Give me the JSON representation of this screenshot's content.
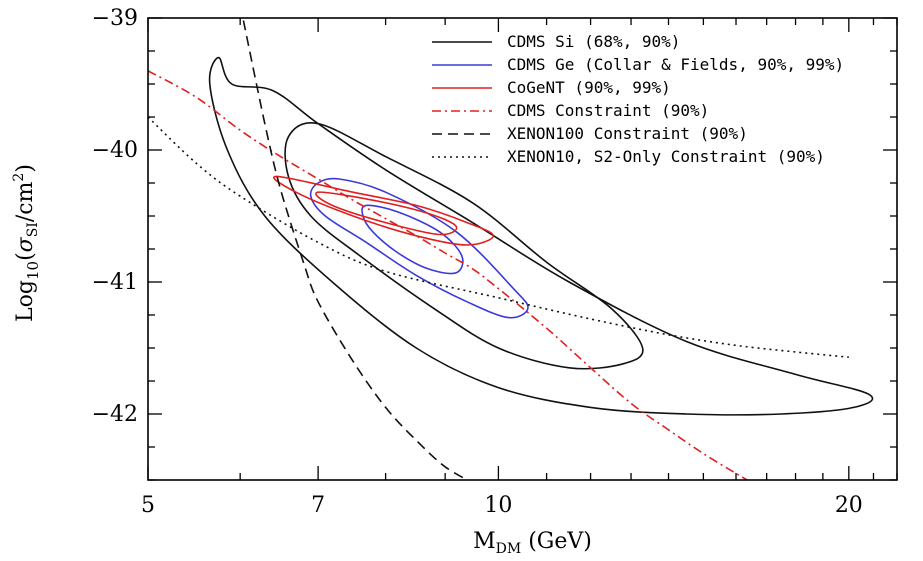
{
  "chart_data": {
    "type": "line",
    "xlabel": "M_DM (GeV)",
    "xlabel_main": "M",
    "xlabel_sub": "DM",
    "xlabel_unit": " (GeV)",
    "ylabel": "Log10(σSI/cm2)",
    "x_scale": "log",
    "xlim": [
      5,
      22
    ],
    "ylim": [
      -42.5,
      -39
    ],
    "x_ticks": [
      5,
      7,
      10,
      20
    ],
    "y_ticks": [
      -39,
      -40,
      -41,
      -42
    ],
    "x_tick_labels": [
      "5",
      "7",
      "10",
      "20"
    ],
    "y_tick_labels": [
      "−39",
      "−40",
      "−41",
      "−42"
    ],
    "legend_position": "top-right",
    "colors": {
      "black": "#111111",
      "blue": "#3a3ad8",
      "red": "#e02020"
    },
    "series": [
      {
        "name": "CDMS Si (68%, 90%)",
        "color": "#111111",
        "style": "solid",
        "kind": "contours",
        "contours": [
          [
            [
              5.75,
              -39.3
            ],
            [
              5.9,
              -39.5
            ],
            [
              6.4,
              -39.55
            ],
            [
              7.0,
              -39.8
            ],
            [
              8.0,
              -40.15
            ],
            [
              9.5,
              -40.55
            ],
            [
              11.5,
              -41.0
            ],
            [
              14.5,
              -41.45
            ],
            [
              18.0,
              -41.7
            ],
            [
              20.8,
              -41.85
            ],
            [
              20.2,
              -41.95
            ],
            [
              17.5,
              -42.0
            ],
            [
              14.5,
              -42.0
            ],
            [
              12.0,
              -41.95
            ],
            [
              10.0,
              -41.8
            ],
            [
              8.5,
              -41.5
            ],
            [
              7.2,
              -41.0
            ],
            [
              6.3,
              -40.5
            ],
            [
              5.85,
              -40.0
            ],
            [
              5.65,
              -39.5
            ],
            [
              5.75,
              -39.3
            ]
          ],
          [
            [
              6.6,
              -39.9
            ],
            [
              7.0,
              -39.8
            ],
            [
              8.0,
              -40.05
            ],
            [
              9.5,
              -40.4
            ],
            [
              11.0,
              -40.85
            ],
            [
              12.5,
              -41.2
            ],
            [
              13.3,
              -41.5
            ],
            [
              12.8,
              -41.62
            ],
            [
              11.5,
              -41.65
            ],
            [
              10.0,
              -41.5
            ],
            [
              8.8,
              -41.2
            ],
            [
              7.6,
              -40.8
            ],
            [
              6.9,
              -40.5
            ],
            [
              6.6,
              -40.2
            ],
            [
              6.6,
              -39.9
            ]
          ]
        ]
      },
      {
        "name": "CDMS Ge (Collar & Fields, 90%, 99%)",
        "color": "#3a3ad8",
        "style": "solid",
        "kind": "contours",
        "contours": [
          [
            [
              7.0,
              -40.25
            ],
            [
              7.3,
              -40.22
            ],
            [
              8.0,
              -40.32
            ],
            [
              9.2,
              -40.62
            ],
            [
              10.3,
              -41.05
            ],
            [
              10.6,
              -41.2
            ],
            [
              10.2,
              -41.27
            ],
            [
              9.4,
              -41.15
            ],
            [
              8.5,
              -40.95
            ],
            [
              7.7,
              -40.7
            ],
            [
              7.1,
              -40.5
            ],
            [
              6.9,
              -40.35
            ],
            [
              7.0,
              -40.25
            ]
          ],
          [
            [
              7.7,
              -40.42
            ],
            [
              8.2,
              -40.47
            ],
            [
              8.9,
              -40.62
            ],
            [
              9.3,
              -40.8
            ],
            [
              9.2,
              -40.93
            ],
            [
              8.7,
              -40.9
            ],
            [
              8.2,
              -40.78
            ],
            [
              7.8,
              -40.62
            ],
            [
              7.65,
              -40.5
            ],
            [
              7.7,
              -40.42
            ]
          ]
        ]
      },
      {
        "name": "CoGeNT (90%, 99%)",
        "color": "#e02020",
        "style": "solid",
        "kind": "contours",
        "contours": [
          [
            [
              6.45,
              -40.2
            ],
            [
              7.5,
              -40.32
            ],
            [
              8.5,
              -40.42
            ],
            [
              9.4,
              -40.55
            ],
            [
              9.9,
              -40.65
            ],
            [
              9.4,
              -40.72
            ],
            [
              8.5,
              -40.65
            ],
            [
              7.5,
              -40.5
            ],
            [
              6.7,
              -40.32
            ],
            [
              6.45,
              -40.2
            ]
          ],
          [
            [
              7.0,
              -40.32
            ],
            [
              7.8,
              -40.38
            ],
            [
              8.7,
              -40.48
            ],
            [
              9.2,
              -40.58
            ],
            [
              8.9,
              -40.64
            ],
            [
              8.0,
              -40.55
            ],
            [
              7.2,
              -40.42
            ],
            [
              7.0,
              -40.32
            ]
          ]
        ]
      },
      {
        "name": "CDMS Constraint (90%)",
        "color": "#e02020",
        "style": "dash-dot",
        "kind": "curve",
        "x": [
          5.0,
          5.5,
          6.0,
          6.5,
          7.0,
          7.5,
          8.0,
          8.5,
          9.0,
          9.5,
          10.0,
          11.0,
          12.0,
          13.0,
          14.0,
          15.0,
          16.0,
          16.5
        ],
        "y": [
          -39.4,
          -39.6,
          -39.85,
          -40.05,
          -40.22,
          -40.38,
          -40.52,
          -40.65,
          -40.78,
          -40.9,
          -41.05,
          -41.35,
          -41.65,
          -41.92,
          -42.12,
          -42.3,
          -42.45,
          -42.52
        ]
      },
      {
        "name": "XENON100 Constraint (90%)",
        "color": "#111111",
        "style": "dashed",
        "kind": "curve",
        "x": [
          6.0,
          6.3,
          6.5,
          6.8,
          7.0,
          7.5,
          8.0,
          8.5,
          9.0,
          9.5
        ],
        "y": [
          -38.9,
          -39.8,
          -40.3,
          -40.85,
          -41.15,
          -41.6,
          -41.95,
          -42.2,
          -42.4,
          -42.52
        ]
      },
      {
        "name": "XENON10, S2-Only Constraint (90%)",
        "color": "#111111",
        "style": "dotted",
        "kind": "curve",
        "x": [
          5.0,
          5.5,
          6.0,
          7.0,
          8.0,
          10.0,
          12.0,
          14.0,
          16.0,
          18.0,
          20.0
        ],
        "y": [
          -39.75,
          -40.1,
          -40.35,
          -40.7,
          -40.92,
          -41.12,
          -41.28,
          -41.4,
          -41.48,
          -41.53,
          -41.57
        ]
      }
    ]
  }
}
